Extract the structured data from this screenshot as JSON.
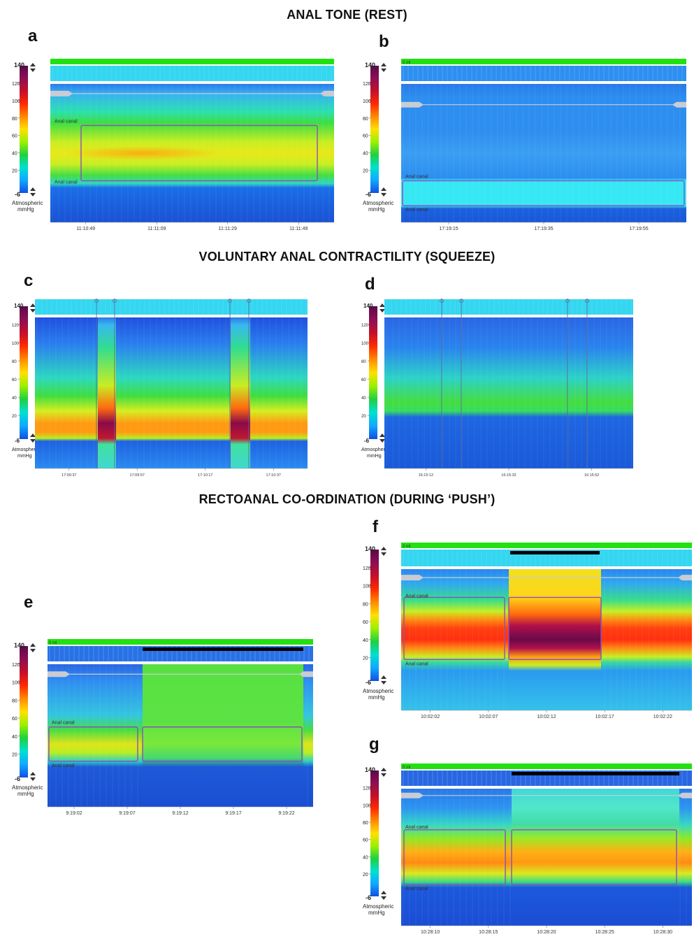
{
  "sections": [
    {
      "title": "ANAL TONE (REST)"
    },
    {
      "title": "VOLUNTARY ANAL CONTRACTILITY (SQUEEZE)"
    },
    {
      "title": "RECTOANAL CO-ORDINATION (DURING ‘PUSH’)"
    }
  ],
  "scale": {
    "top": "140",
    "bottom": "-6",
    "ticks": [
      "120",
      "100",
      "80",
      "60",
      "40",
      "20"
    ],
    "tick_values": [
      120,
      100,
      80,
      60,
      40,
      20
    ],
    "unit_line1": "Atmospheric",
    "unit_line2": "mmHg",
    "colors": [
      "#5a0a4a",
      "#8e0f52",
      "#c4102a",
      "#ff2a00",
      "#ff8a00",
      "#ffe000",
      "#9cf000",
      "#20d040",
      "#00e0d0",
      "#10a8ff",
      "#1050e0"
    ]
  },
  "colors": {
    "title_bar": "#22e012",
    "deep_blue": "#1a4fd6",
    "mid_blue": "#2a8cf0",
    "cyan": "#34d6f0",
    "green": "#33dd44",
    "yellow": "#f0ea1a",
    "orange": "#ff8a10",
    "red": "#ee2010",
    "maroon": "#7a0a3e",
    "marker_box": "#8a4fbf",
    "push_bar": "#000000"
  },
  "labels": {
    "anal_canal": "Anal canal",
    "volume_label": "0 ml"
  },
  "panels": [
    {
      "letter": "a",
      "times": [
        "11:10:49",
        "11:11:09",
        "11:11:29",
        "11:11:49"
      ]
    },
    {
      "letter": "b",
      "times": [
        "17:19:15",
        "17:19:35",
        "17:19:55"
      ]
    },
    {
      "letter": "c",
      "times": [
        "17:09:37",
        "17:09:57",
        "17:10:17",
        "17:10:37"
      ]
    },
    {
      "letter": "d",
      "times": [
        "16:15:12",
        "16:15:32",
        "16:15:52"
      ]
    },
    {
      "letter": "e",
      "times": [
        "9:19:02",
        "9:19:07",
        "9:19:12",
        "9:19:17",
        "9:19:22"
      ]
    },
    {
      "letter": "f",
      "times": [
        "10:02:02",
        "10:02:07",
        "10:02:12",
        "10:02:17",
        "10:02:22"
      ]
    },
    {
      "letter": "g",
      "times": [
        "10:28:10",
        "10:28:15",
        "10:28:20",
        "10:28:25",
        "10:28:30"
      ]
    }
  ]
}
